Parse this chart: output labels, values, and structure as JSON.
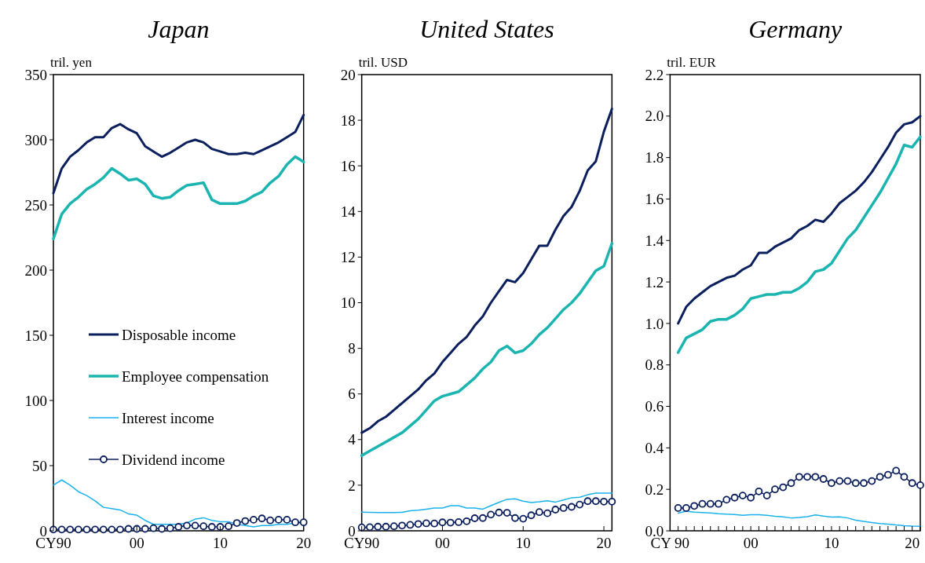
{
  "chart_data": [
    {
      "type": "line",
      "title": "Japan",
      "ylabel": "tril. yen",
      "xlim": [
        1990,
        2020
      ],
      "ylim": [
        0,
        350
      ],
      "yticks": [
        0,
        50,
        100,
        150,
        200,
        250,
        300,
        350
      ],
      "xticks": [
        {
          "value": 1990,
          "label": "CY90"
        },
        {
          "value": 2000,
          "label": "00"
        },
        {
          "value": 2010,
          "label": "10"
        },
        {
          "value": 2020,
          "label": "20"
        }
      ],
      "x": [
        1990,
        1991,
        1992,
        1993,
        1994,
        1995,
        1996,
        1997,
        1998,
        1999,
        2000,
        2001,
        2002,
        2003,
        2004,
        2005,
        2006,
        2007,
        2008,
        2009,
        2010,
        2011,
        2012,
        2013,
        2014,
        2015,
        2016,
        2017,
        2018,
        2019,
        2020
      ],
      "grid": false,
      "legend": "bottom left",
      "series": [
        {
          "name": "Disposable income",
          "color": "#0b1f5e",
          "marker": "none",
          "values": [
            259,
            278,
            287,
            292,
            298,
            302,
            302,
            309,
            312,
            308,
            305,
            295,
            291,
            287,
            290,
            294,
            298,
            300,
            298,
            293,
            291,
            289,
            289,
            290,
            289,
            292,
            295,
            298,
            302,
            306,
            319
          ]
        },
        {
          "name": "Employee compensation",
          "color": "#1ab5b0",
          "marker": "none",
          "values": [
            224,
            243,
            251,
            256,
            262,
            266,
            271,
            278,
            274,
            269,
            270,
            266,
            257,
            255,
            256,
            261,
            265,
            266,
            267,
            254,
            251,
            251,
            251,
            253,
            257,
            260,
            267,
            272,
            281,
            287,
            283
          ]
        },
        {
          "name": "Interest income",
          "color": "#1ab2ec",
          "marker": "none",
          "values": [
            35,
            39,
            35,
            30,
            27,
            23,
            18,
            17,
            16,
            13,
            12,
            8,
            5,
            5,
            5,
            5,
            6,
            9,
            10,
            8,
            7,
            7,
            5,
            4,
            3,
            4,
            4,
            5,
            5,
            6,
            6
          ]
        },
        {
          "name": "Dividend income",
          "color": "#0b1f5e",
          "marker": "circle",
          "values": [
            1,
            1,
            1,
            1,
            1,
            1,
            1,
            1,
            1,
            1.5,
            1.5,
            1.5,
            2,
            1.5,
            2,
            3,
            4,
            4,
            3.5,
            3,
            3,
            3.5,
            6,
            7.5,
            8.5,
            9.5,
            8,
            8.5,
            8.5,
            6.5,
            6.5
          ]
        }
      ]
    },
    {
      "type": "line",
      "title": "United States",
      "ylabel": "tril. USD",
      "xlim": [
        1990,
        2021
      ],
      "ylim": [
        0,
        20
      ],
      "yticks": [
        0,
        2,
        4,
        6,
        8,
        10,
        12,
        14,
        16,
        18,
        20
      ],
      "xticks": [
        {
          "value": 1990,
          "label": "CY90"
        },
        {
          "value": 2000,
          "label": "00"
        },
        {
          "value": 2010,
          "label": "10"
        },
        {
          "value": 2020,
          "label": "20"
        }
      ],
      "x": [
        1990,
        1991,
        1992,
        1993,
        1994,
        1995,
        1996,
        1997,
        1998,
        1999,
        2000,
        2001,
        2002,
        2003,
        2004,
        2005,
        2006,
        2007,
        2008,
        2009,
        2010,
        2011,
        2012,
        2013,
        2014,
        2015,
        2016,
        2017,
        2018,
        2019,
        2020,
        2021
      ],
      "grid": false,
      "legend": false,
      "series": [
        {
          "color": "#0b1f5e",
          "marker": "none",
          "values": [
            4.3,
            4.5,
            4.8,
            5.0,
            5.3,
            5.6,
            5.9,
            6.2,
            6.6,
            6.9,
            7.4,
            7.8,
            8.2,
            8.5,
            9.0,
            9.4,
            10.0,
            10.5,
            11.0,
            10.9,
            11.3,
            11.9,
            12.5,
            12.5,
            13.2,
            13.8,
            14.2,
            14.9,
            15.8,
            16.2,
            17.5,
            18.5
          ]
        },
        {
          "color": "#1ab5b0",
          "marker": "none",
          "values": [
            3.3,
            3.5,
            3.7,
            3.9,
            4.1,
            4.3,
            4.6,
            4.9,
            5.3,
            5.7,
            5.9,
            6.0,
            6.1,
            6.4,
            6.7,
            7.1,
            7.4,
            7.9,
            8.1,
            7.8,
            7.9,
            8.2,
            8.6,
            8.9,
            9.3,
            9.7,
            10.0,
            10.4,
            10.9,
            11.4,
            11.6,
            12.6
          ]
        },
        {
          "color": "#1ab2ec",
          "marker": "none",
          "values": [
            0.82,
            0.81,
            0.8,
            0.8,
            0.8,
            0.81,
            0.88,
            0.9,
            0.95,
            1.0,
            1.0,
            1.1,
            1.1,
            1.0,
            1.0,
            0.95,
            1.1,
            1.25,
            1.38,
            1.4,
            1.3,
            1.24,
            1.27,
            1.32,
            1.26,
            1.35,
            1.45,
            1.47,
            1.58,
            1.65,
            1.65,
            1.65
          ]
        },
        {
          "color": "#0b1f5e",
          "marker": "circle",
          "values": [
            0.15,
            0.16,
            0.18,
            0.18,
            0.2,
            0.23,
            0.26,
            0.3,
            0.33,
            0.32,
            0.37,
            0.36,
            0.38,
            0.42,
            0.55,
            0.56,
            0.71,
            0.8,
            0.79,
            0.56,
            0.53,
            0.68,
            0.82,
            0.77,
            0.93,
            1.0,
            1.05,
            1.15,
            1.3,
            1.3,
            1.28,
            1.28
          ]
        }
      ]
    },
    {
      "type": "line",
      "title": "Germany",
      "ylabel": "tril. EUR",
      "xlim": [
        1990,
        2021
      ],
      "ylim": [
        0,
        2.2
      ],
      "yticks": [
        {
          "value": 0,
          "label": "0.0"
        },
        0.2,
        0.4,
        0.6,
        0.8,
        {
          "value": 1,
          "label": "1.0"
        },
        1.2,
        1.4,
        1.6,
        1.8,
        {
          "value": 2,
          "label": "2.0"
        },
        2.2
      ],
      "xticks": [
        {
          "value": 1990,
          "label": "CY 90"
        },
        {
          "value": 1991,
          "label": null
        },
        {
          "value": 1992,
          "label": null
        },
        {
          "value": 1993,
          "label": null
        },
        {
          "value": 1994,
          "label": null
        },
        {
          "value": 1995,
          "label": null
        },
        {
          "value": 1996,
          "label": null
        },
        {
          "value": 1997,
          "label": null
        },
        {
          "value": 1998,
          "label": null
        },
        {
          "value": 1999,
          "label": null
        },
        {
          "value": 2000,
          "label": "00"
        },
        {
          "value": 2001,
          "label": null
        },
        {
          "value": 2002,
          "label": null
        },
        {
          "value": 2003,
          "label": null
        },
        {
          "value": 2004,
          "label": null
        },
        {
          "value": 2005,
          "label": null
        },
        {
          "value": 2006,
          "label": null
        },
        {
          "value": 2007,
          "label": null
        },
        {
          "value": 2008,
          "label": null
        },
        {
          "value": 2009,
          "label": null
        },
        {
          "value": 2010,
          "label": "10"
        },
        {
          "value": 2011,
          "label": null
        },
        {
          "value": 2012,
          "label": null
        },
        {
          "value": 2013,
          "label": null
        },
        {
          "value": 2014,
          "label": null
        },
        {
          "value": 2015,
          "label": null
        },
        {
          "value": 2016,
          "label": null
        },
        {
          "value": 2017,
          "label": null
        },
        {
          "value": 2018,
          "label": null
        },
        {
          "value": 2019,
          "label": null
        },
        {
          "value": 2020,
          "label": "20"
        },
        {
          "value": 2021,
          "label": null
        }
      ],
      "x": [
        1991,
        1992,
        1993,
        1994,
        1995,
        1996,
        1997,
        1998,
        1999,
        2000,
        2001,
        2002,
        2003,
        2004,
        2005,
        2006,
        2007,
        2008,
        2009,
        2010,
        2011,
        2012,
        2013,
        2014,
        2015,
        2016,
        2017,
        2018,
        2019,
        2020,
        2021
      ],
      "grid": false,
      "legend": false,
      "series": [
        {
          "color": "#0b1f5e",
          "marker": "none",
          "values": [
            1.0,
            1.08,
            1.12,
            1.15,
            1.18,
            1.2,
            1.22,
            1.23,
            1.26,
            1.28,
            1.34,
            1.34,
            1.37,
            1.39,
            1.41,
            1.45,
            1.47,
            1.5,
            1.49,
            1.53,
            1.58,
            1.61,
            1.64,
            1.68,
            1.73,
            1.79,
            1.85,
            1.92,
            1.96,
            1.97,
            2.0
          ]
        },
        {
          "color": "#1ab5b0",
          "marker": "none",
          "values": [
            0.86,
            0.93,
            0.95,
            0.97,
            1.01,
            1.02,
            1.02,
            1.04,
            1.07,
            1.12,
            1.13,
            1.14,
            1.14,
            1.15,
            1.15,
            1.17,
            1.2,
            1.25,
            1.26,
            1.29,
            1.35,
            1.41,
            1.45,
            1.51,
            1.57,
            1.63,
            1.7,
            1.77,
            1.86,
            1.85,
            1.9
          ]
        },
        {
          "color": "#1ab2ec",
          "marker": "none",
          "values": [
            0.085,
            0.095,
            0.09,
            0.088,
            0.086,
            0.082,
            0.08,
            0.079,
            0.075,
            0.078,
            0.078,
            0.075,
            0.07,
            0.067,
            0.062,
            0.064,
            0.068,
            0.077,
            0.071,
            0.066,
            0.067,
            0.062,
            0.051,
            0.045,
            0.04,
            0.035,
            0.032,
            0.028,
            0.025,
            0.023,
            0.022
          ]
        },
        {
          "color": "#0b1f5e",
          "marker": "circle",
          "values": [
            0.11,
            0.11,
            0.12,
            0.13,
            0.13,
            0.13,
            0.15,
            0.16,
            0.17,
            0.16,
            0.19,
            0.17,
            0.2,
            0.21,
            0.23,
            0.26,
            0.26,
            0.26,
            0.25,
            0.23,
            0.24,
            0.24,
            0.23,
            0.23,
            0.24,
            0.26,
            0.27,
            0.29,
            0.26,
            0.23,
            0.22
          ]
        }
      ]
    }
  ]
}
